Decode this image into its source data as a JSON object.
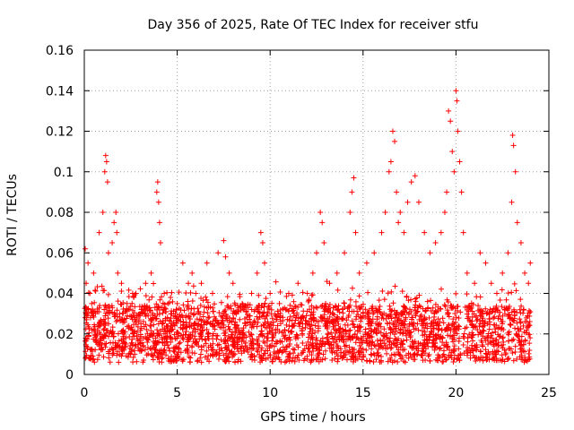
{
  "chart_data": {
    "type": "scatter",
    "title": "Day 356 of 2025, Rate Of TEC Index for receiver stfu",
    "xlabel": "GPS time / hours",
    "ylabel": "ROTI / TECUs",
    "xlim": [
      0,
      25
    ],
    "ylim": [
      0,
      0.16
    ],
    "x_ticks": [
      0,
      5,
      10,
      15,
      20,
      25
    ],
    "x_tick_labels": [
      "0",
      "5",
      "10",
      "15",
      "20",
      "25"
    ],
    "y_ticks": [
      0,
      0.02,
      0.04,
      0.06,
      0.08,
      0.1,
      0.12,
      0.14,
      0.16
    ],
    "y_tick_labels": [
      "0",
      "0.02",
      "0.04",
      "0.06",
      "0.08",
      "0.1",
      "0.12",
      "0.14",
      "0.16"
    ],
    "grid": true,
    "marker": "+",
    "color": "#ff0000",
    "series": [
      {
        "name": "ROTI",
        "x": [
          0.05,
          0.1,
          0.15,
          0.2,
          0.3,
          0.4,
          0.5,
          0.6,
          0.8,
          1.0,
          1.1,
          1.15,
          1.2,
          1.25,
          1.3,
          1.5,
          1.6,
          1.7,
          1.75,
          1.8,
          2.0,
          2.3,
          2.6,
          3.0,
          3.3,
          3.6,
          3.9,
          3.95,
          4.0,
          4.05,
          4.1,
          4.3,
          4.5,
          4.7,
          5.0,
          5.3,
          5.6,
          5.8,
          6.0,
          6.3,
          6.6,
          6.9,
          7.2,
          7.5,
          7.6,
          7.8,
          8.0,
          8.5,
          9.0,
          9.3,
          9.5,
          9.6,
          9.7,
          10.0,
          10.5,
          11.0,
          11.5,
          12.0,
          12.3,
          12.5,
          12.7,
          12.8,
          12.9,
          13.2,
          13.6,
          14.0,
          14.3,
          14.4,
          14.5,
          14.6,
          14.8,
          15.2,
          15.6,
          16.0,
          16.2,
          16.4,
          16.5,
          16.6,
          16.7,
          16.8,
          16.9,
          17.0,
          17.2,
          17.4,
          17.6,
          17.8,
          18.0,
          18.3,
          18.6,
          18.9,
          19.2,
          19.4,
          19.5,
          19.6,
          19.7,
          19.8,
          19.9,
          20.0,
          20.05,
          20.1,
          20.2,
          20.3,
          20.4,
          20.6,
          21.0,
          21.3,
          21.6,
          21.9,
          22.2,
          22.5,
          22.8,
          23.0,
          23.05,
          23.1,
          23.2,
          23.3,
          23.5,
          23.7,
          23.9,
          24.0
        ],
        "y": [
          0.062,
          0.045,
          0.03,
          0.055,
          0.04,
          0.035,
          0.05,
          0.03,
          0.07,
          0.08,
          0.1,
          0.108,
          0.105,
          0.095,
          0.06,
          0.065,
          0.075,
          0.08,
          0.07,
          0.05,
          0.045,
          0.035,
          0.04,
          0.03,
          0.045,
          0.05,
          0.09,
          0.095,
          0.085,
          0.075,
          0.065,
          0.04,
          0.035,
          0.03,
          0.035,
          0.055,
          0.045,
          0.05,
          0.04,
          0.045,
          0.055,
          0.04,
          0.06,
          0.066,
          0.058,
          0.05,
          0.045,
          0.035,
          0.04,
          0.05,
          0.07,
          0.065,
          0.055,
          0.04,
          0.035,
          0.04,
          0.045,
          0.04,
          0.05,
          0.06,
          0.08,
          0.075,
          0.065,
          0.045,
          0.05,
          0.06,
          0.08,
          0.09,
          0.097,
          0.07,
          0.05,
          0.055,
          0.06,
          0.07,
          0.08,
          0.1,
          0.105,
          0.12,
          0.115,
          0.09,
          0.075,
          0.08,
          0.07,
          0.085,
          0.095,
          0.098,
          0.085,
          0.07,
          0.06,
          0.065,
          0.07,
          0.08,
          0.09,
          0.13,
          0.125,
          0.11,
          0.1,
          0.14,
          0.135,
          0.12,
          0.105,
          0.09,
          0.07,
          0.05,
          0.045,
          0.06,
          0.055,
          0.045,
          0.04,
          0.05,
          0.06,
          0.085,
          0.118,
          0.113,
          0.1,
          0.075,
          0.065,
          0.05,
          0.045,
          0.055
        ],
        "note": "Dense band of points between approximately 0.005 and 0.035 TECUs across 0-24 hours"
      }
    ]
  }
}
